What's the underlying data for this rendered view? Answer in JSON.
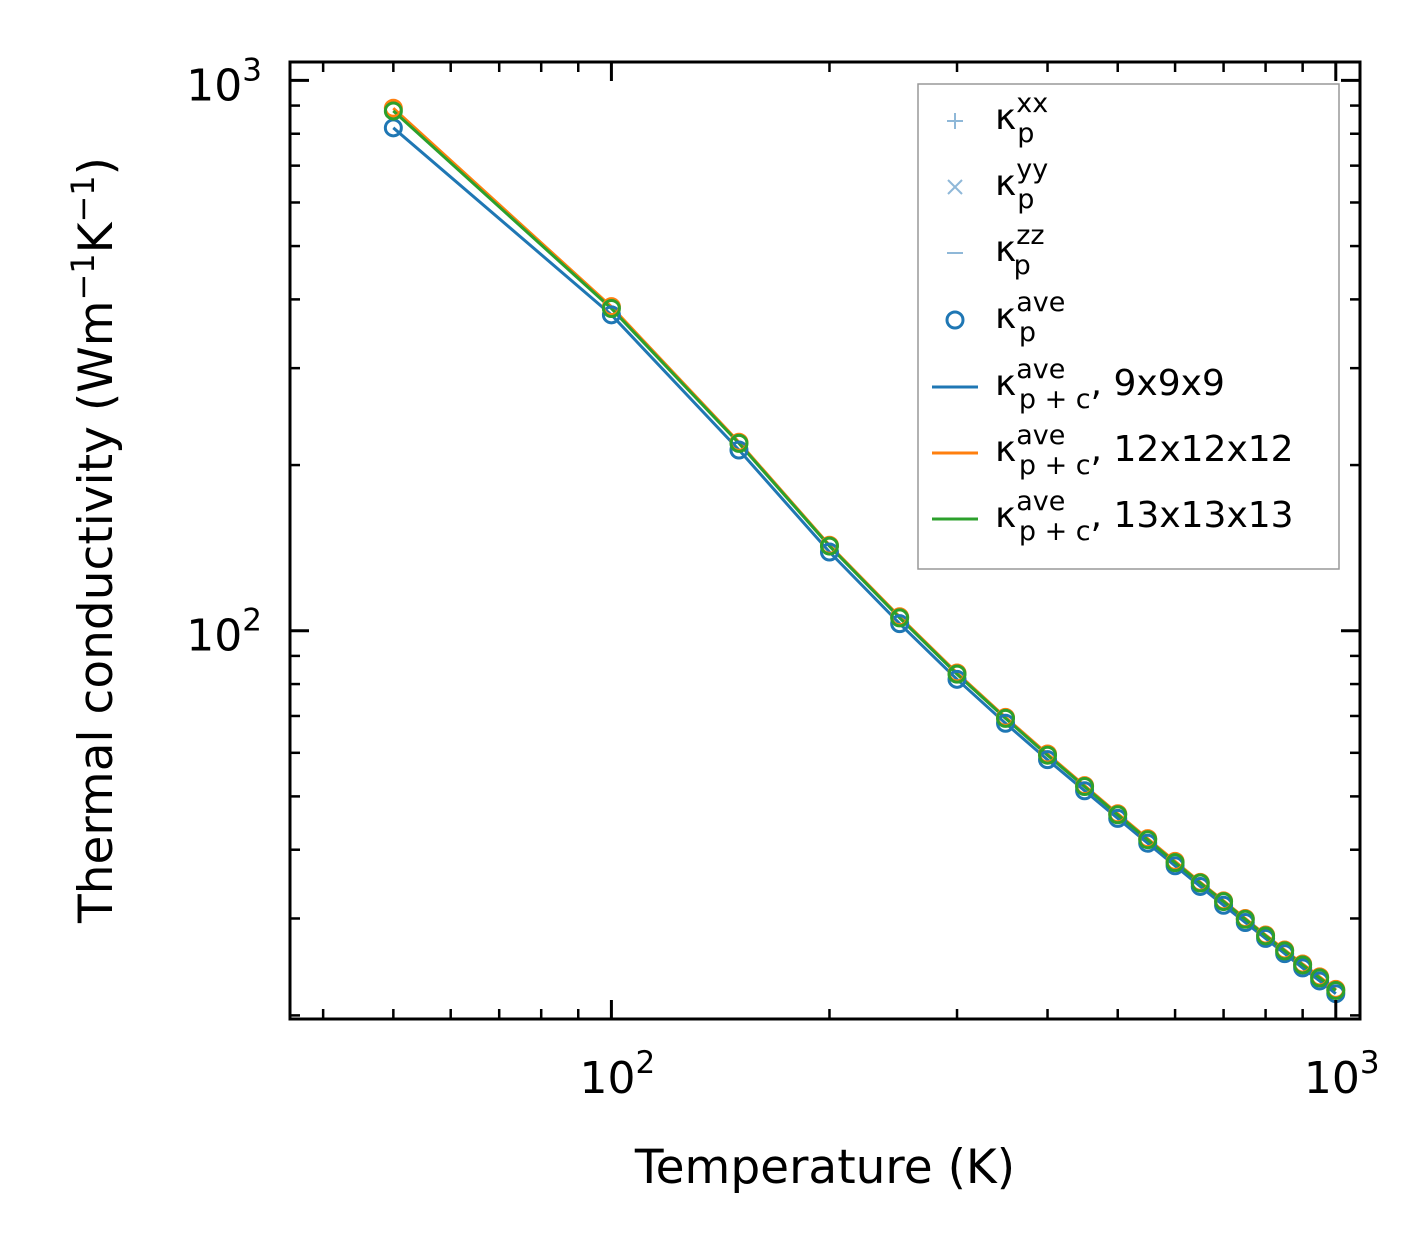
{
  "chart_data": {
    "type": "line",
    "xscale": "log",
    "yscale": "log",
    "xlabel": "Temperature (K)",
    "ylabel_parts": [
      "Thermal conductivity (Wm",
      "−1",
      "K",
      "−1",
      ")"
    ],
    "xlim": [
      36,
      1080
    ],
    "ylim": [
      19.7,
      1080
    ],
    "x_major_ticks": [
      {
        "value": 100,
        "base": "10",
        "exp": "2"
      },
      {
        "value": 1000,
        "base": "10",
        "exp": "3"
      }
    ],
    "y_major_ticks": [
      {
        "value": 100,
        "base": "10",
        "exp": "2"
      },
      {
        "value": 1000,
        "base": "10",
        "exp": "3"
      }
    ],
    "x": [
      50,
      100,
      150,
      200,
      250,
      300,
      350,
      400,
      450,
      500,
      550,
      600,
      650,
      700,
      750,
      800,
      850,
      900,
      950,
      1000
    ],
    "series": [
      {
        "name": "9x9x9",
        "color": "#1f77b4",
        "values": [
          820,
          375,
          213,
          139,
          103,
          81.6,
          67.9,
          58.3,
          51.2,
          45.6,
          41.1,
          37.4,
          34.3,
          31.7,
          29.5,
          27.6,
          25.9,
          24.4,
          23.1,
          21.9
        ]
      },
      {
        "name": "12x12x12",
        "color": "#ff7f0e",
        "values": [
          890,
          388,
          220,
          143,
          106,
          83.8,
          69.6,
          59.7,
          52.3,
          46.5,
          41.9,
          38.1,
          34.9,
          32.3,
          30.0,
          28.0,
          26.3,
          24.8,
          23.5,
          22.3
        ]
      },
      {
        "name": "13x13x13",
        "color": "#2ca02c",
        "values": [
          880,
          385,
          219,
          142.5,
          105.5,
          83.4,
          69.3,
          59.4,
          52.1,
          46.3,
          41.7,
          37.9,
          34.8,
          32.2,
          29.9,
          27.9,
          26.2,
          24.7,
          23.4,
          22.2
        ]
      }
    ],
    "legend": {
      "position": "upper right",
      "entries": [
        {
          "kind": "plus",
          "color": "#8fb8d8",
          "sym": "κ",
          "sub": "p",
          "sup": "xx",
          "suffix": ""
        },
        {
          "kind": "cross",
          "color": "#8fb8d8",
          "sym": "κ",
          "sub": "p",
          "sup": "yy",
          "suffix": ""
        },
        {
          "kind": "dash",
          "color": "#8fb8d8",
          "sym": "κ",
          "sub": "p",
          "sup": "zz",
          "suffix": ""
        },
        {
          "kind": "circle",
          "color": "#1f77b4",
          "sym": "κ",
          "sub": "p",
          "sup": "ave",
          "suffix": ""
        },
        {
          "kind": "line",
          "color": "#1f77b4",
          "sym": "κ",
          "sub": "p + c",
          "sup": "ave",
          "suffix": ", 9x9x9"
        },
        {
          "kind": "line",
          "color": "#ff7f0e",
          "sym": "κ",
          "sub": "p + c",
          "sup": "ave",
          "suffix": ", 12x12x12"
        },
        {
          "kind": "line",
          "color": "#2ca02c",
          "sym": "κ",
          "sub": "p + c",
          "sup": "ave",
          "suffix": ", 13x13x13"
        }
      ]
    }
  }
}
